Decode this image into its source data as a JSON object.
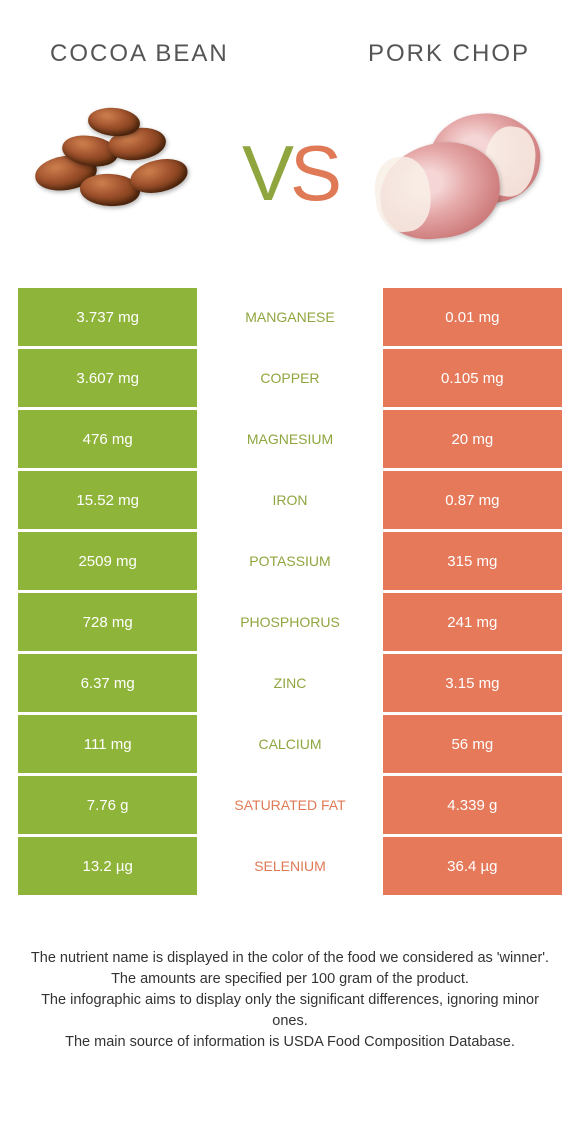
{
  "colors": {
    "left_bg": "#8fb43a",
    "right_bg": "#e5795a",
    "left_text": "#8fa63f",
    "right_text": "#e07a56",
    "title": "#555555",
    "footer": "#333333"
  },
  "header": {
    "left_title": "COCOA BEAN",
    "right_title": "PORK CHOP"
  },
  "vs": {
    "v": "V",
    "s": "S"
  },
  "rows": [
    {
      "left": "3.737 mg",
      "label": "MANGANESE",
      "winner": "left",
      "right": "0.01 mg"
    },
    {
      "left": "3.607 mg",
      "label": "COPPER",
      "winner": "left",
      "right": "0.105 mg"
    },
    {
      "left": "476 mg",
      "label": "MAGNESIUM",
      "winner": "left",
      "right": "20 mg"
    },
    {
      "left": "15.52 mg",
      "label": "IRON",
      "winner": "left",
      "right": "0.87 mg"
    },
    {
      "left": "2509 mg",
      "label": "POTASSIUM",
      "winner": "left",
      "right": "315 mg"
    },
    {
      "left": "728 mg",
      "label": "PHOSPHORUS",
      "winner": "left",
      "right": "241 mg"
    },
    {
      "left": "6.37 mg",
      "label": "ZINC",
      "winner": "left",
      "right": "3.15 mg"
    },
    {
      "left": "111 mg",
      "label": "CALCIUM",
      "winner": "left",
      "right": "56 mg"
    },
    {
      "left": "7.76 g",
      "label": "SATURATED FAT",
      "winner": "right",
      "right": "4.339 g"
    },
    {
      "left": "13.2 µg",
      "label": "SELENIUM",
      "winner": "right",
      "right": "36.4 µg"
    }
  ],
  "footer": {
    "line1": "The nutrient name is displayed in the color of the food we considered as 'winner'.",
    "line2": "The amounts are specified per 100 gram of the product.",
    "line3": "The infographic aims to display only the significant differences, ignoring minor ones.",
    "line4": "The main source of information is USDA Food Composition Database."
  }
}
